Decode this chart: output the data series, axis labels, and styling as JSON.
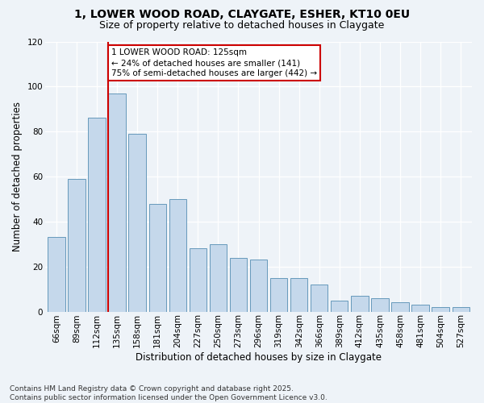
{
  "title_line1": "1, LOWER WOOD ROAD, CLAYGATE, ESHER, KT10 0EU",
  "title_line2": "Size of property relative to detached houses in Claygate",
  "xlabel": "Distribution of detached houses by size in Claygate",
  "ylabel": "Number of detached properties",
  "categories": [
    "66sqm",
    "89sqm",
    "112sqm",
    "135sqm",
    "158sqm",
    "181sqm",
    "204sqm",
    "227sqm",
    "250sqm",
    "273sqm",
    "296sqm",
    "319sqm",
    "342sqm",
    "366sqm",
    "389sqm",
    "412sqm",
    "435sqm",
    "458sqm",
    "481sqm",
    "504sqm",
    "527sqm"
  ],
  "values": [
    33,
    59,
    86,
    97,
    79,
    48,
    50,
    28,
    30,
    24,
    23,
    15,
    15,
    12,
    5,
    7,
    6,
    4,
    3,
    2,
    2
  ],
  "bar_color": "#c5d8eb",
  "bar_edge_color": "#6699bb",
  "background_color": "#eef3f8",
  "annotation_text": "1 LOWER WOOD ROAD: 125sqm\n← 24% of detached houses are smaller (141)\n75% of semi-detached houses are larger (442) →",
  "annotation_box_facecolor": "white",
  "annotation_box_edgecolor": "#cc0000",
  "marker_line_color": "#cc0000",
  "ylim_max": 120,
  "yticks": [
    0,
    20,
    40,
    60,
    80,
    100,
    120
  ],
  "title_fontsize": 10,
  "subtitle_fontsize": 9,
  "tick_fontsize": 7.5,
  "axis_label_fontsize": 8.5,
  "annotation_fontsize": 7.5,
  "footer_fontsize": 6.5,
  "footer_line1": "Contains HM Land Registry data © Crown copyright and database right 2025.",
  "footer_line2": "Contains public sector information licensed under the Open Government Licence v3.0."
}
